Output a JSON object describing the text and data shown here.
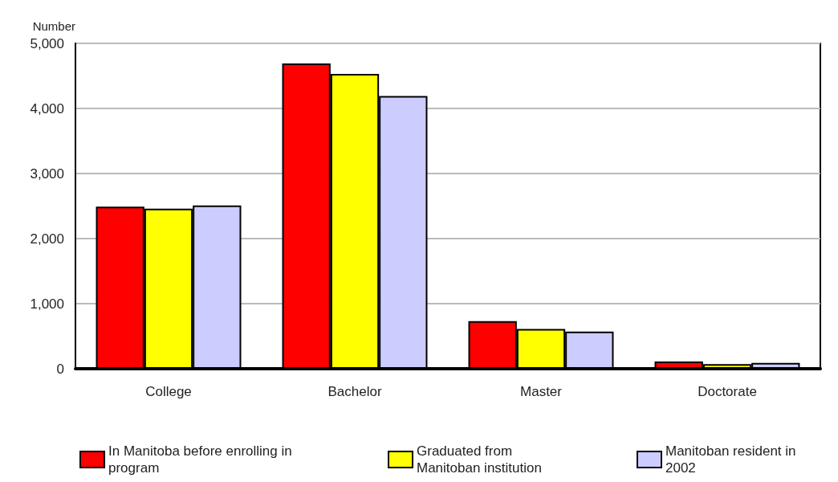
{
  "chart_data": {
    "type": "bar",
    "ylabel": "Number",
    "categories": [
      "College",
      "Bachelor",
      "Master",
      "Doctorate"
    ],
    "series": [
      {
        "name": "In Manitoba before enrolling in program",
        "color": "#ff0000",
        "values": [
          2490,
          4690,
          730,
          110
        ]
      },
      {
        "name": "Graduated from Manitoban institution",
        "color": "#ffff00",
        "values": [
          2460,
          4530,
          610,
          70
        ]
      },
      {
        "name": "Manitoban resident in 2002",
        "color": "#ccccff",
        "values": [
          2510,
          4190,
          570,
          90
        ]
      }
    ],
    "ylim": [
      0,
      5000
    ],
    "yticks": [
      0,
      {
        "value": 1000,
        "label": "1,000"
      },
      {
        "value": 2000,
        "label": "2,000"
      },
      {
        "value": 3000,
        "label": "3,000"
      },
      {
        "value": 4000,
        "label": "4,000"
      },
      {
        "value": 5000,
        "label": "5,000"
      }
    ],
    "grid": "y",
    "legend": "bottom"
  }
}
